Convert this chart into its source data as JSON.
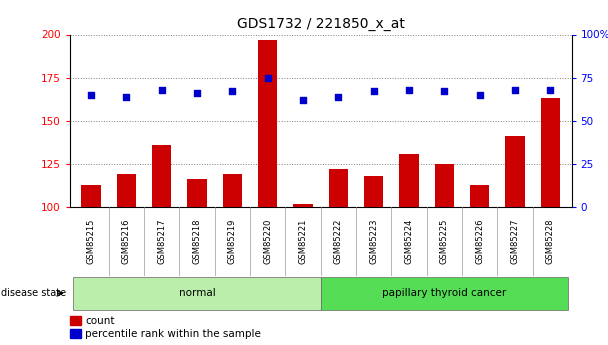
{
  "title": "GDS1732 / 221850_x_at",
  "samples": [
    "GSM85215",
    "GSM85216",
    "GSM85217",
    "GSM85218",
    "GSM85219",
    "GSM85220",
    "GSM85221",
    "GSM85222",
    "GSM85223",
    "GSM85224",
    "GSM85225",
    "GSM85226",
    "GSM85227",
    "GSM85228"
  ],
  "count_values": [
    113,
    119,
    136,
    116,
    119,
    197,
    102,
    122,
    118,
    131,
    125,
    113,
    141,
    163
  ],
  "percentile_values": [
    65,
    64,
    68,
    66,
    67,
    75,
    62,
    64,
    67,
    68,
    67,
    65,
    68,
    68
  ],
  "groups": [
    {
      "label": "normal",
      "start": 0,
      "end": 7,
      "color": "#bbeeaa"
    },
    {
      "label": "papillary thyroid cancer",
      "start": 7,
      "end": 14,
      "color": "#55dd55"
    }
  ],
  "disease_state_label": "disease state",
  "ylim_left": [
    100,
    200
  ],
  "ylim_right": [
    0,
    100
  ],
  "yticks_left": [
    100,
    125,
    150,
    175,
    200
  ],
  "yticks_right": [
    0,
    25,
    50,
    75,
    100
  ],
  "bar_color": "#cc0000",
  "dot_color": "#0000cc",
  "bar_width": 0.55,
  "legend_count_label": "count",
  "legend_percentile_label": "percentile rank within the sample",
  "plot_bg_color": "#ffffff",
  "xlabel_bg_color": "#c8c8c8",
  "xlabel_divider_color": "#999999"
}
